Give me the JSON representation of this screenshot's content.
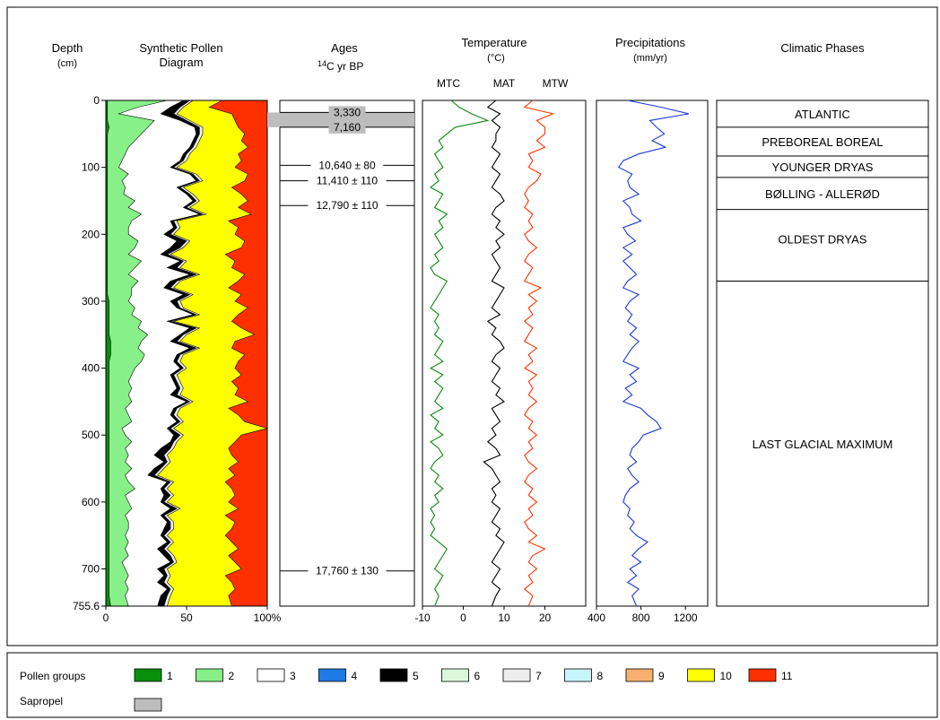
{
  "colors": {
    "g1": "#0a8f0a",
    "g2": "#88f088",
    "g3": "#ffffff",
    "g4": "#1e7ae6",
    "g5": "#000000",
    "g6": "#dcf8dc",
    "g7": "#eeeeee",
    "g8": "#c8f4fc",
    "g9": "#f8b070",
    "g10": "#ffff00",
    "g11": "#ff3000",
    "sapropel": "#bdbdbd",
    "mtc": "#0a8a0a",
    "mat": "#000000",
    "mtw": "#ff3300",
    "precip": "#1a3ad6"
  },
  "headers": {
    "depth": "Depth",
    "depth_unit": "(cm)",
    "pollen1": "Synthetic Pollen",
    "pollen2": "Diagram",
    "ages": "Ages",
    "ages_sup": "14",
    "ages_unit": "C yr BP",
    "temp": "Temperature",
    "temp_unit": "(°C)",
    "precip": "Precipitations",
    "precip_unit": "(mm/yr)",
    "phases": "Climatic Phases"
  },
  "temp_series_labels": {
    "mtc": "MTC",
    "mat": "MAT",
    "mtw": "MTW"
  },
  "legend": {
    "pollen_label": "Pollen groups",
    "sapropel_label": "Sapropel",
    "groups": [
      "1",
      "2",
      "3",
      "4",
      "5",
      "6",
      "7",
      "8",
      "9",
      "10",
      "11"
    ]
  },
  "chart_data": [
    {
      "type": "area",
      "title": "Synthetic Pollen Diagram",
      "ylabel": "Depth (cm)",
      "ylim": [
        0,
        755.6
      ],
      "y_ticks": [
        "0",
        "100",
        "200",
        "300",
        "400",
        "500",
        "600",
        "700",
        "755.6"
      ],
      "xlim": [
        0,
        100
      ],
      "x_ticks": [
        "0",
        "50",
        "100%"
      ],
      "depth": [
        0,
        10,
        20,
        30,
        40,
        50,
        60,
        70,
        80,
        90,
        100,
        110,
        120,
        130,
        140,
        150,
        160,
        170,
        180,
        190,
        200,
        210,
        220,
        230,
        240,
        250,
        260,
        270,
        280,
        290,
        300,
        310,
        320,
        330,
        340,
        350,
        360,
        370,
        380,
        390,
        400,
        410,
        420,
        430,
        440,
        450,
        460,
        470,
        480,
        490,
        500,
        510,
        520,
        530,
        540,
        550,
        560,
        570,
        580,
        590,
        600,
        610,
        620,
        630,
        640,
        650,
        660,
        670,
        680,
        690,
        700,
        710,
        720,
        730,
        740,
        755.6
      ],
      "boundaries": {
        "g1_top": [
          1,
          1,
          1,
          1,
          2,
          1,
          1,
          1,
          1,
          1,
          1,
          1,
          1,
          1,
          1,
          1,
          1,
          1,
          1,
          1,
          1,
          1,
          1,
          1,
          1,
          1,
          1,
          1,
          1,
          1,
          2,
          2,
          2,
          2,
          2,
          2,
          3,
          3,
          3,
          2,
          2,
          2,
          2,
          2,
          2,
          2,
          2,
          2,
          2,
          2,
          2,
          2,
          2,
          2,
          2,
          2,
          2,
          2,
          2,
          2,
          2,
          2,
          2,
          2,
          2,
          2,
          2,
          2,
          2,
          2,
          2,
          2,
          2,
          2,
          2,
          3
        ],
        "g2_top": [
          38,
          20,
          8,
          30,
          26,
          22,
          18,
          14,
          12,
          10,
          8,
          14,
          10,
          12,
          11,
          18,
          14,
          22,
          16,
          14,
          14,
          20,
          18,
          14,
          22,
          18,
          14,
          20,
          16,
          16,
          14,
          18,
          16,
          22,
          20,
          26,
          22,
          20,
          24,
          22,
          18,
          16,
          14,
          16,
          14,
          16,
          12,
          14,
          16,
          10,
          12,
          16,
          12,
          14,
          12,
          16,
          12,
          14,
          18,
          12,
          14,
          16,
          12,
          14,
          14,
          12,
          14,
          12,
          14,
          10,
          12,
          14,
          12,
          14,
          12,
          14
        ],
        "g3_top": [
          48,
          40,
          34,
          46,
          55,
          56,
          54,
          52,
          48,
          46,
          40,
          52,
          56,
          44,
          50,
          54,
          48,
          58,
          40,
          42,
          36,
          44,
          40,
          34,
          46,
          38,
          52,
          40,
          36,
          48,
          40,
          44,
          54,
          38,
          52,
          46,
          40,
          52,
          44,
          42,
          46,
          40,
          42,
          44,
          40,
          50,
          42,
          40,
          44,
          38,
          42,
          40,
          34,
          30,
          36,
          30,
          26,
          38,
          34,
          36,
          34,
          40,
          34,
          38,
          36,
          34,
          38,
          32,
          36,
          40,
          32,
          36,
          32,
          38,
          34,
          32
        ],
        "g5_top": [
          52,
          46,
          42,
          50,
          58,
          58,
          56,
          54,
          50,
          48,
          42,
          54,
          58,
          46,
          52,
          56,
          50,
          60,
          42,
          44,
          40,
          50,
          46,
          38,
          48,
          44,
          56,
          44,
          40,
          52,
          44,
          46,
          56,
          40,
          56,
          48,
          44,
          56,
          46,
          44,
          48,
          42,
          44,
          46,
          44,
          52,
          44,
          42,
          46,
          40,
          46,
          42,
          40,
          36,
          38,
          34,
          30,
          40,
          36,
          40,
          36,
          44,
          36,
          40,
          40,
          36,
          40,
          36,
          40,
          42,
          36,
          38,
          36,
          40,
          38,
          36
        ],
        "g7_top": [
          54,
          48,
          44,
          52,
          60,
          60,
          58,
          56,
          52,
          50,
          44,
          56,
          60,
          48,
          54,
          58,
          52,
          62,
          44,
          46,
          42,
          52,
          48,
          40,
          50,
          46,
          58,
          46,
          42,
          54,
          46,
          48,
          58,
          42,
          58,
          50,
          46,
          58,
          48,
          46,
          50,
          44,
          46,
          48,
          46,
          54,
          46,
          44,
          48,
          42,
          48,
          44,
          42,
          38,
          40,
          36,
          32,
          42,
          38,
          42,
          38,
          46,
          38,
          42,
          42,
          38,
          42,
          38,
          42,
          44,
          38,
          40,
          38,
          42,
          40,
          38
        ],
        "g10_top": [
          72,
          64,
          78,
          80,
          82,
          86,
          84,
          88,
          82,
          84,
          80,
          88,
          86,
          78,
          84,
          88,
          82,
          90,
          76,
          82,
          80,
          86,
          84,
          74,
          80,
          78,
          86,
          82,
          76,
          84,
          80,
          88,
          82,
          78,
          84,
          92,
          80,
          78,
          86,
          82,
          80,
          84,
          78,
          82,
          80,
          88,
          76,
          82,
          86,
          100,
          84,
          80,
          76,
          78,
          82,
          76,
          80,
          74,
          78,
          80,
          76,
          82,
          74,
          80,
          78,
          74,
          78,
          82,
          76,
          80,
          84,
          74,
          78,
          80,
          76,
          78
        ],
        "g11_top": [
          100,
          100,
          100,
          100,
          100,
          100,
          100,
          100,
          100,
          100,
          100,
          100,
          100,
          100,
          100,
          100,
          100,
          100,
          100,
          100,
          100,
          100,
          100,
          100,
          100,
          100,
          100,
          100,
          100,
          100,
          100,
          100,
          100,
          100,
          100,
          100,
          100,
          100,
          100,
          100,
          100,
          100,
          100,
          100,
          100,
          100,
          100,
          100,
          100,
          100,
          100,
          100,
          100,
          100,
          100,
          100,
          100,
          100,
          100,
          100,
          100,
          100,
          100,
          100,
          100,
          100,
          100,
          100,
          100,
          100,
          100,
          100,
          100,
          100,
          100,
          100
        ]
      },
      "sapropel_interval": [
        18,
        40
      ]
    },
    {
      "type": "table",
      "title": "Ages",
      "entries": [
        {
          "depth": 18,
          "label": "3,330"
        },
        {
          "depth": 40,
          "label": "7,160"
        },
        {
          "depth": 97,
          "label": "10,640 ± 80"
        },
        {
          "depth": 120,
          "label": "11,410 ± 110"
        },
        {
          "depth": 157,
          "label": "12,790 ± 110"
        },
        {
          "depth": 703,
          "label": "17,760 ± 130"
        }
      ]
    },
    {
      "type": "line",
      "title": "Temperature",
      "xlim": [
        -10,
        30
      ],
      "x_ticks": [
        -10,
        0,
        10,
        20
      ],
      "depth": [
        0,
        10,
        20,
        30,
        40,
        50,
        60,
        70,
        80,
        90,
        100,
        110,
        120,
        130,
        140,
        150,
        160,
        170,
        180,
        190,
        200,
        210,
        220,
        230,
        240,
        250,
        260,
        270,
        280,
        290,
        300,
        310,
        320,
        330,
        340,
        350,
        360,
        370,
        380,
        390,
        400,
        410,
        420,
        430,
        440,
        450,
        460,
        470,
        480,
        490,
        500,
        510,
        520,
        530,
        540,
        550,
        560,
        570,
        580,
        590,
        600,
        610,
        620,
        630,
        640,
        650,
        660,
        670,
        680,
        690,
        700,
        710,
        720,
        730,
        740,
        755.6
      ],
      "series": [
        {
          "name": "MTC",
          "values": [
            -3,
            -1,
            2,
            6,
            -2,
            -4,
            -6,
            -5,
            -7,
            -6,
            -5,
            -7,
            -6,
            -8,
            -5,
            -6,
            -7,
            -4,
            -6,
            -5,
            -7,
            -6,
            -5,
            -7,
            -6,
            -8,
            -7,
            -4,
            -5,
            -6,
            -7,
            -8,
            -6,
            -7,
            -6,
            -7,
            -5,
            -6,
            -7,
            -5,
            -8,
            -5,
            -7,
            -5,
            -6,
            -7,
            -5,
            -8,
            -6,
            -7,
            -5,
            -8,
            -6,
            -5,
            -7,
            -8,
            -6,
            -7,
            -5,
            -7,
            -6,
            -8,
            -7,
            -8,
            -7,
            -8,
            -6,
            -4,
            -5,
            -6,
            -7,
            -5,
            -6,
            -7,
            -6,
            -7
          ]
        },
        {
          "name": "MAT",
          "values": [
            8,
            6,
            9,
            7,
            9,
            8,
            8,
            7,
            9,
            8,
            7,
            9,
            8,
            7,
            9,
            10,
            8,
            7,
            9,
            8,
            10,
            8,
            9,
            7,
            8,
            9,
            8,
            7,
            10,
            9,
            8,
            7,
            9,
            6,
            8,
            7,
            9,
            10,
            8,
            7,
            9,
            8,
            7,
            9,
            8,
            10,
            7,
            8,
            9,
            7,
            8,
            6,
            8,
            9,
            5,
            7,
            8,
            9,
            7,
            8,
            7,
            9,
            8,
            7,
            9,
            8,
            10,
            9,
            8,
            7,
            9,
            8,
            7,
            9,
            8,
            7
          ]
        },
        {
          "name": "MTW",
          "values": [
            17,
            15,
            22,
            18,
            20,
            20,
            18,
            20,
            16,
            17,
            16,
            19,
            18,
            16,
            15,
            16,
            15,
            17,
            16,
            17,
            15,
            16,
            18,
            16,
            15,
            17,
            16,
            15,
            19,
            16,
            18,
            16,
            17,
            15,
            17,
            16,
            15,
            18,
            16,
            17,
            15,
            18,
            16,
            17,
            16,
            18,
            16,
            15,
            17,
            16,
            18,
            16,
            17,
            15,
            16,
            18,
            16,
            15,
            17,
            16,
            18,
            16,
            17,
            15,
            16,
            18,
            16,
            20,
            17,
            16,
            18,
            16,
            17,
            15,
            17,
            16
          ]
        }
      ]
    },
    {
      "type": "line",
      "title": "Precipitations",
      "xlim": [
        400,
        1400
      ],
      "x_ticks": [
        400,
        800,
        1200
      ],
      "depth": [
        0,
        10,
        20,
        30,
        40,
        50,
        60,
        70,
        80,
        90,
        100,
        110,
        120,
        130,
        140,
        150,
        160,
        170,
        180,
        190,
        200,
        210,
        220,
        230,
        240,
        250,
        260,
        270,
        280,
        290,
        300,
        310,
        320,
        330,
        340,
        350,
        360,
        370,
        380,
        390,
        400,
        410,
        420,
        430,
        440,
        450,
        460,
        470,
        480,
        490,
        500,
        510,
        520,
        530,
        540,
        550,
        560,
        570,
        580,
        590,
        600,
        610,
        620,
        630,
        640,
        650,
        660,
        670,
        680,
        690,
        700,
        710,
        720,
        730,
        740,
        755.6
      ],
      "series": [
        {
          "name": "Precipitation",
          "values": [
            680,
            980,
            1230,
            880,
            940,
            1010,
            900,
            1020,
            780,
            640,
            600,
            720,
            680,
            700,
            780,
            640,
            700,
            720,
            800,
            640,
            680,
            750,
            640,
            720,
            640,
            700,
            760,
            680,
            640,
            780,
            700,
            660,
            720,
            680,
            760,
            700,
            780,
            720,
            680,
            640,
            780,
            700,
            760,
            660,
            720,
            640,
            800,
            860,
            940,
            980,
            820,
            780,
            720,
            700,
            760,
            680,
            720,
            780,
            700,
            660,
            640,
            700,
            680,
            740,
            700,
            760,
            860,
            780,
            720,
            800,
            700,
            760,
            680,
            780,
            720,
            760
          ]
        }
      ]
    },
    {
      "type": "table",
      "title": "Climatic Phases",
      "phases": [
        {
          "name": "ATLANTIC",
          "from": 0,
          "to": 40
        },
        {
          "name": "PREBOREAL BOREAL",
          "from": 40,
          "to": 83
        },
        {
          "name": "YOUNGER DRYAS",
          "from": 83,
          "to": 115
        },
        {
          "name": "BØLLING - ALLERØD",
          "from": 115,
          "to": 163
        },
        {
          "name": "OLDEST DRYAS",
          "from": 163,
          "to": 270
        },
        {
          "name": "LAST GLACIAL MAXIMUM",
          "from": 270,
          "to": 755.6
        }
      ]
    }
  ]
}
